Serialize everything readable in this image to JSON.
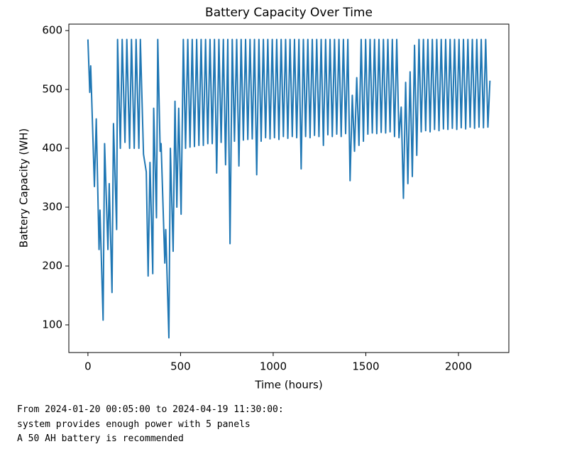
{
  "chart_data": {
    "type": "line",
    "title": "Battery Capacity Over Time",
    "xlabel": "Time (hours)",
    "ylabel": "Battery Capacity (WH)",
    "color": "#1f77b4",
    "x": [
      0,
      10,
      15,
      35,
      45,
      60,
      65,
      82,
      90,
      108,
      115,
      130,
      138,
      155,
      160,
      175,
      185,
      200,
      210,
      225,
      235,
      250,
      260,
      275,
      283,
      300,
      315,
      325,
      335,
      350,
      355,
      370,
      377,
      390,
      395,
      415,
      420,
      437,
      445,
      460,
      470,
      480,
      490,
      503,
      515,
      527,
      539,
      551,
      563,
      575,
      587,
      599,
      611,
      623,
      635,
      647,
      659,
      671,
      683,
      695,
      707,
      719,
      731,
      743,
      755,
      767,
      779,
      791,
      803,
      815,
      827,
      839,
      851,
      863,
      875,
      887,
      899,
      911,
      923,
      935,
      947,
      959,
      971,
      983,
      995,
      1007,
      1019,
      1031,
      1043,
      1055,
      1067,
      1079,
      1091,
      1103,
      1115,
      1127,
      1139,
      1151,
      1163,
      1175,
      1187,
      1199,
      1211,
      1223,
      1235,
      1247,
      1259,
      1271,
      1283,
      1295,
      1307,
      1319,
      1331,
      1343,
      1355,
      1367,
      1379,
      1391,
      1403,
      1415,
      1427,
      1439,
      1451,
      1463,
      1475,
      1487,
      1499,
      1511,
      1523,
      1535,
      1547,
      1559,
      1571,
      1583,
      1595,
      1607,
      1619,
      1631,
      1643,
      1655,
      1667,
      1679,
      1691,
      1703,
      1715,
      1727,
      1739,
      1751,
      1763,
      1775,
      1787,
      1799,
      1811,
      1823,
      1835,
      1847,
      1859,
      1871,
      1883,
      1895,
      1907,
      1919,
      1931,
      1943,
      1955,
      1967,
      1979,
      1991,
      2003,
      2015,
      2027,
      2039,
      2051,
      2063,
      2075,
      2087,
      2099,
      2111,
      2123,
      2135,
      2147,
      2159,
      2170
    ],
    "values": [
      585,
      495,
      540,
      335,
      450,
      228,
      295,
      108,
      408,
      228,
      340,
      155,
      442,
      262,
      585,
      400,
      585,
      410,
      585,
      400,
      585,
      400,
      585,
      400,
      585,
      390,
      360,
      183,
      376,
      187,
      468,
      282,
      585,
      395,
      408,
      205,
      262,
      78,
      400,
      225,
      480,
      300,
      468,
      288,
      585,
      400,
      585,
      402,
      585,
      403,
      585,
      405,
      585,
      405,
      585,
      408,
      585,
      408,
      585,
      358,
      585,
      410,
      585,
      372,
      585,
      238,
      585,
      412,
      585,
      370,
      585,
      414,
      585,
      415,
      585,
      416,
      585,
      355,
      585,
      412,
      585,
      418,
      585,
      416,
      585,
      418,
      585,
      415,
      585,
      420,
      585,
      417,
      585,
      420,
      585,
      418,
      585,
      365,
      585,
      420,
      585,
      418,
      585,
      422,
      585,
      420,
      585,
      405,
      585,
      423,
      585,
      420,
      585,
      424,
      585,
      420,
      585,
      425,
      585,
      345,
      490,
      395,
      520,
      405,
      585,
      412,
      585,
      424,
      585,
      426,
      585,
      425,
      585,
      427,
      585,
      426,
      585,
      428,
      585,
      420,
      585,
      418,
      470,
      315,
      512,
      340,
      530,
      352,
      575,
      388,
      585,
      428,
      585,
      430,
      585,
      428,
      585,
      432,
      585,
      430,
      585,
      433,
      585,
      432,
      585,
      434,
      585,
      432,
      585,
      435,
      585,
      433,
      585,
      436,
      585,
      434,
      585,
      436,
      585,
      435,
      585,
      436,
      515
    ],
    "xlim": [
      -103,
      2272
    ],
    "ylim": [
      53,
      611
    ],
    "xticks": [
      0,
      500,
      1000,
      1500,
      2000
    ],
    "yticks": [
      100,
      200,
      300,
      400,
      500,
      600
    ]
  },
  "output_lines": [
    "From 2024-01-20 00:05:00 to 2024-04-19 11:30:00:",
    "system provides enough power with 5 panels",
    "A 50 AH battery is recommended"
  ]
}
